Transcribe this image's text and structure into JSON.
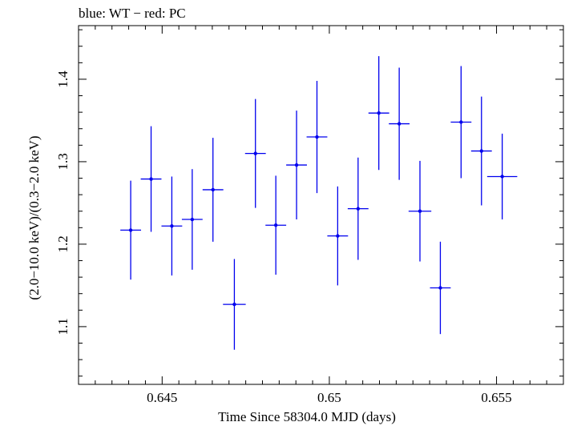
{
  "chart_data": {
    "type": "scatter",
    "title": "blue: WT − red: PC",
    "xlabel": "Time Since 58304.0 MJD (days)",
    "ylabel": "(2.0−10.0 keV)/(0.3−2.0 keV)",
    "xlim": [
      0.6425,
      0.657
    ],
    "ylim": [
      1.03,
      1.465
    ],
    "x_ticks": [
      {
        "value": 0.645,
        "label": "0.645"
      },
      {
        "value": 0.65,
        "label": "0.65"
      },
      {
        "value": 0.655,
        "label": "0.655"
      }
    ],
    "y_ticks": [
      {
        "value": 1.1,
        "label": "1.1"
      },
      {
        "value": 1.2,
        "label": "1.2"
      },
      {
        "value": 1.3,
        "label": "1.3"
      },
      {
        "value": 1.4,
        "label": "1.4"
      }
    ],
    "series": [
      {
        "name": "WT",
        "color": "#0000ee",
        "points": [
          {
            "x": 0.64406,
            "y": 1.217,
            "xerr": 0.00031,
            "yerr": 0.06
          },
          {
            "x": 0.64467,
            "y": 1.279,
            "xerr": 0.00031,
            "yerr": 0.064
          },
          {
            "x": 0.64529,
            "y": 1.222,
            "xerr": 0.00031,
            "yerr": 0.06
          },
          {
            "x": 0.6459,
            "y": 1.23,
            "xerr": 0.00031,
            "yerr": 0.061
          },
          {
            "x": 0.64652,
            "y": 1.266,
            "xerr": 0.00031,
            "yerr": 0.063
          },
          {
            "x": 0.64716,
            "y": 1.127,
            "xerr": 0.00034,
            "yerr": 0.055
          },
          {
            "x": 0.64779,
            "y": 1.31,
            "xerr": 0.00031,
            "yerr": 0.066
          },
          {
            "x": 0.6484,
            "y": 1.223,
            "xerr": 0.00031,
            "yerr": 0.06
          },
          {
            "x": 0.64902,
            "y": 1.296,
            "xerr": 0.00031,
            "yerr": 0.066
          },
          {
            "x": 0.64963,
            "y": 1.33,
            "xerr": 0.00031,
            "yerr": 0.068
          },
          {
            "x": 0.65025,
            "y": 1.21,
            "xerr": 0.00031,
            "yerr": 0.06
          },
          {
            "x": 0.65086,
            "y": 1.243,
            "xerr": 0.00031,
            "yerr": 0.062
          },
          {
            "x": 0.65148,
            "y": 1.359,
            "xerr": 0.00031,
            "yerr": 0.069
          },
          {
            "x": 0.65209,
            "y": 1.346,
            "xerr": 0.00031,
            "yerr": 0.068
          },
          {
            "x": 0.65271,
            "y": 1.24,
            "xerr": 0.00034,
            "yerr": 0.061
          },
          {
            "x": 0.65332,
            "y": 1.147,
            "xerr": 0.00031,
            "yerr": 0.056
          },
          {
            "x": 0.65394,
            "y": 1.348,
            "xerr": 0.00031,
            "yerr": 0.068
          },
          {
            "x": 0.65455,
            "y": 1.313,
            "xerr": 0.00031,
            "yerr": 0.066
          },
          {
            "x": 0.65517,
            "y": 1.282,
            "xerr": 0.00045,
            "yerr": 0.052
          }
        ]
      }
    ],
    "grid": false
  }
}
